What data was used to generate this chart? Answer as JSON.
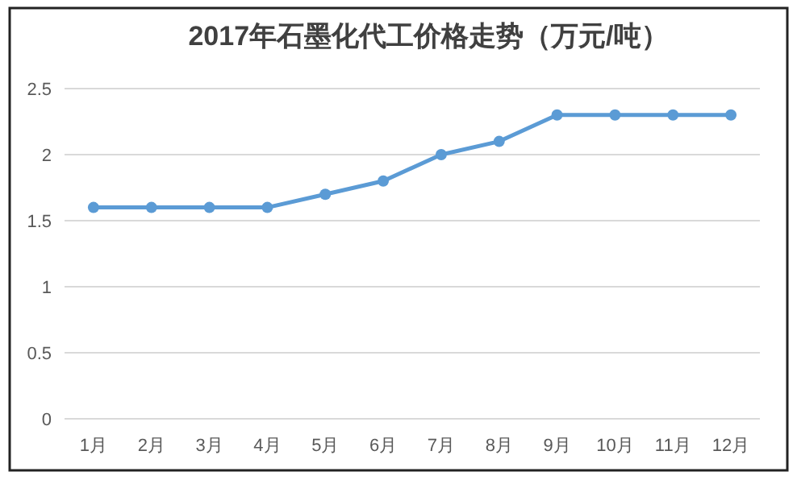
{
  "chart_data": {
    "type": "line",
    "title": "2017年石墨化代工价格走势（万元/吨）",
    "categories": [
      "1月",
      "2月",
      "3月",
      "4月",
      "5月",
      "6月",
      "7月",
      "8月",
      "9月",
      "10月",
      "11月",
      "12月"
    ],
    "series": [
      {
        "color": "#5b9bd5",
        "values": [
          1.6,
          1.6,
          1.6,
          1.6,
          1.7,
          1.8,
          2.0,
          2.1,
          2.3,
          2.3,
          2.3,
          2.3
        ]
      }
    ],
    "ylim": [
      0,
      2.5
    ],
    "yticks": [
      0,
      0.5,
      1,
      1.5,
      2,
      2.5
    ],
    "grid": "y",
    "marker": "circle",
    "line_style": "solid"
  }
}
